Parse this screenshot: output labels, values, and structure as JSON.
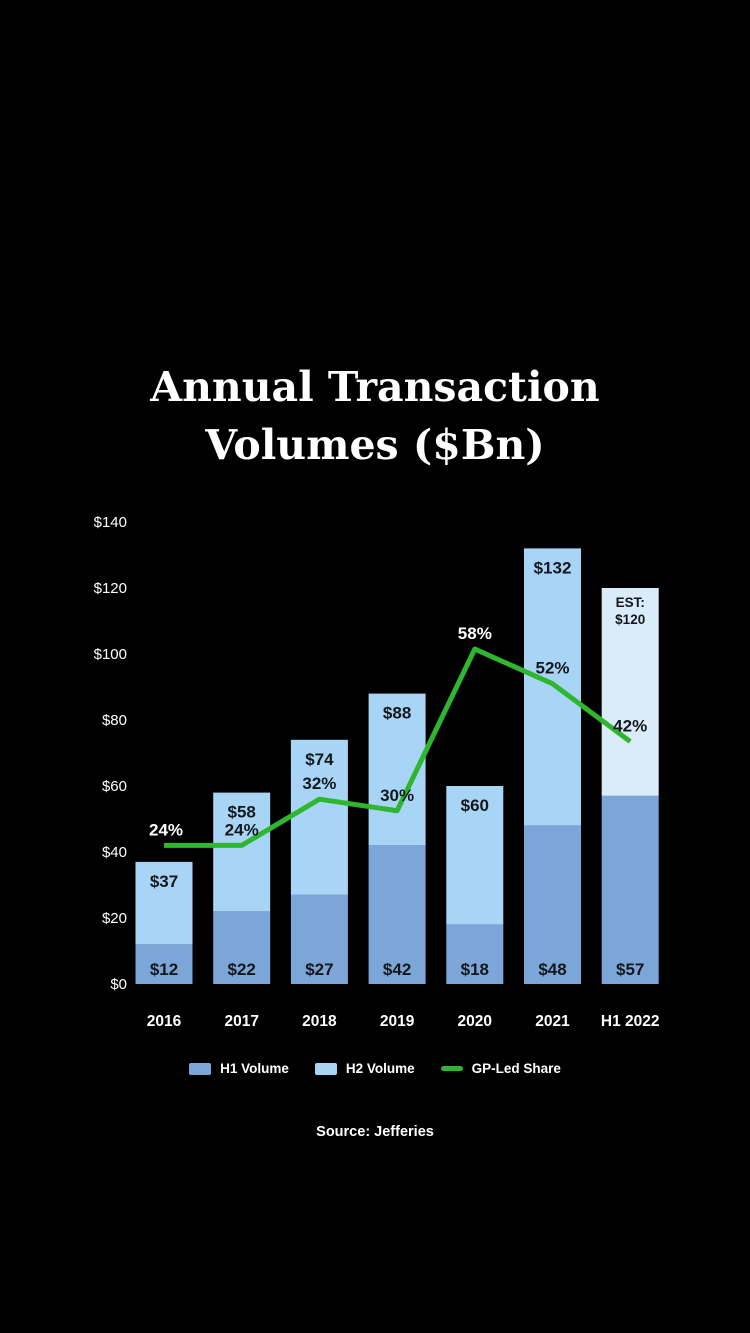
{
  "title": {
    "line1": "Annual Transaction",
    "line2": "Volumes ($Bn)"
  },
  "source": "Source: Jefferies",
  "colors": {
    "background": "#000000",
    "h1": "#7ca6d8",
    "h2": "#a8d5f6",
    "estimate": "#daecf9",
    "line": "#2eb72e",
    "label_dark": "#14181c",
    "label_light": "#ffffff"
  },
  "legend": {
    "items": [
      {
        "label": "H1 Volume",
        "swatch": "square",
        "color_key": "h1"
      },
      {
        "label": "H2 Volume",
        "swatch": "square",
        "color_key": "h2"
      },
      {
        "label": "GP-Led Share",
        "swatch": "line",
        "color_key": "line"
      }
    ]
  },
  "chart_data": {
    "type": "bar",
    "subtype": "stacked-bars-with-line-overlay",
    "title": "Annual Transaction Volumes ($Bn)",
    "categories": [
      "2016",
      "2017",
      "2018",
      "2019",
      "2020",
      "2021",
      "H1 2022"
    ],
    "series": [
      {
        "name": "H1 Volume",
        "values": [
          12,
          22,
          27,
          42,
          18,
          48,
          57
        ]
      },
      {
        "name": "H2 Volume",
        "values": [
          25,
          36,
          47,
          46,
          42,
          84,
          63
        ]
      }
    ],
    "totals": [
      37,
      58,
      74,
      88,
      60,
      132,
      120
    ],
    "total_labels": [
      [
        "$37"
      ],
      [
        "$58"
      ],
      [
        "$74"
      ],
      [
        "$88"
      ],
      [
        "$60"
      ],
      [
        "$132"
      ],
      [
        "EST:",
        "$120"
      ]
    ],
    "h1_labels": [
      "$12",
      "$22",
      "$27",
      "$42",
      "$18",
      "$48",
      "$57"
    ],
    "estimate_index": 6,
    "line": {
      "name": "GP-Led Share",
      "values_pct": [
        24,
        24,
        32,
        30,
        58,
        52,
        42
      ],
      "labels": [
        "24%",
        "24%",
        "32%",
        "30%",
        "58%",
        "52%",
        "42%"
      ],
      "label_on_black": [
        true,
        false,
        false,
        false,
        true,
        false,
        false
      ],
      "axis_max_pct": 80
    },
    "yticks": [
      "$0",
      "$20",
      "$40",
      "$60",
      "$80",
      "$100",
      "$120",
      "$140"
    ],
    "ylim": [
      0,
      140
    ],
    "grid": false,
    "legend_position": "bottom"
  }
}
